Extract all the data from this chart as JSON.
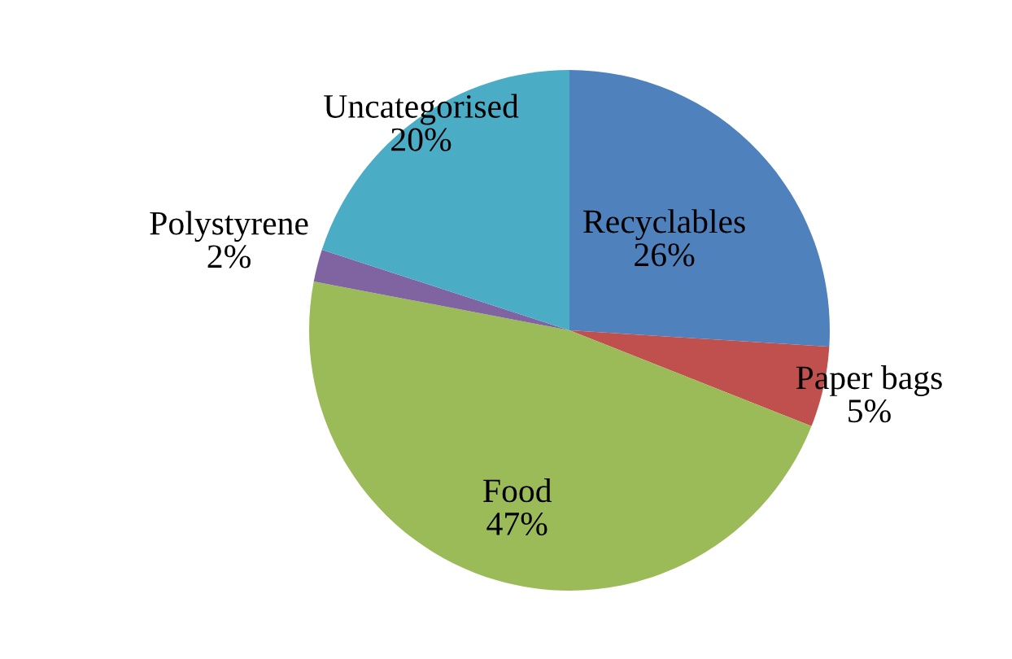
{
  "chart_data": {
    "type": "pie",
    "categories": [
      "Recyclables",
      "Paper bags",
      "Food",
      "Polystyrene",
      "Uncategorised"
    ],
    "values": [
      26,
      5,
      47,
      2,
      20
    ],
    "value_labels": [
      "26%",
      "5%",
      "47%",
      "2%",
      "20%"
    ],
    "colors": [
      "#4f81bd",
      "#c0504d",
      "#9bbb59",
      "#8064a2",
      "#4bacc6"
    ],
    "legend": false
  }
}
